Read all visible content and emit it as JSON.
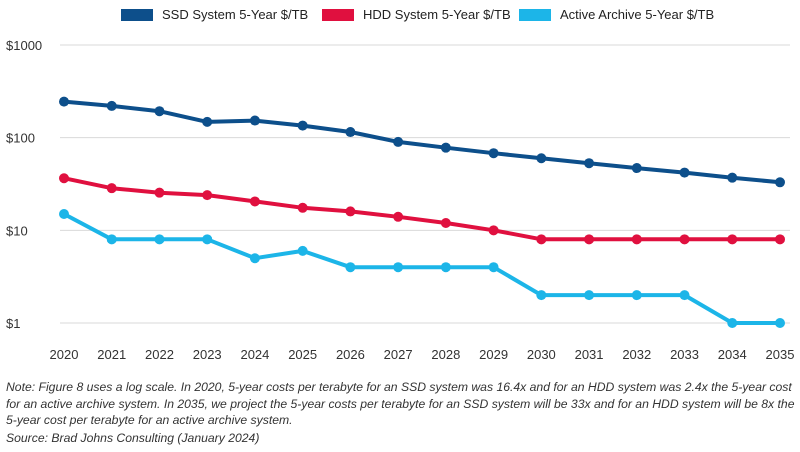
{
  "chart_data": {
    "type": "line",
    "y_scale": "log",
    "categories": [
      "2020",
      "2021",
      "2022",
      "2023",
      "2024",
      "2025",
      "2026",
      "2027",
      "2028",
      "2029",
      "2030",
      "2031",
      "2032",
      "2033",
      "2034",
      "2035"
    ],
    "y_ticks": [
      {
        "value": 1000,
        "label": "$1000"
      },
      {
        "value": 100,
        "label": "$100"
      },
      {
        "value": 10,
        "label": "$10"
      },
      {
        "value": 1,
        "label": "$1"
      }
    ],
    "ylim": [
      1,
      1000
    ],
    "legend_position": "top-center",
    "grid": true,
    "series": [
      {
        "name": "SSD System 5-Year $/TB",
        "color": "#0d4f8b",
        "values": [
          245,
          220,
          193,
          148,
          153,
          135,
          115,
          90,
          78,
          68,
          60,
          53,
          47,
          42,
          37,
          33
        ]
      },
      {
        "name": "HDD System 5-Year $/TB",
        "color": "#e0103f",
        "values": [
          36.5,
          28.5,
          25.5,
          24,
          20.5,
          17.5,
          16,
          14,
          12,
          10,
          8,
          8,
          8,
          8,
          8,
          8
        ]
      },
      {
        "name": "Active Archive 5-Year $/TB",
        "color": "#1cb5e8",
        "values": [
          15,
          8,
          8,
          8,
          5,
          6,
          4,
          4,
          4,
          4,
          2,
          2,
          2,
          2,
          1,
          1
        ]
      }
    ]
  },
  "note": "Note: Figure 8 uses a log scale. In 2020, 5-year costs per terabyte for an SSD system was 16.4x and for an HDD system was 2.4x the 5-year cost for an active archive system. In 2035, we project the 5-year costs per terabyte for an SSD system will be 33x and for an HDD system will be 8x the 5-year cost per terabyte for an active archive system.",
  "source": "Source: Brad Johns Consulting (January 2024)"
}
